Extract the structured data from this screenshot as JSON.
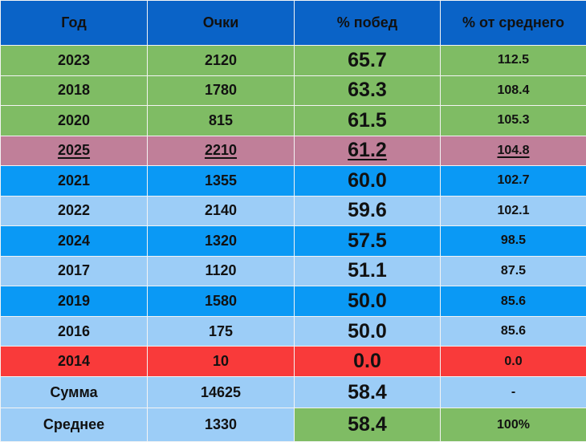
{
  "table": {
    "headers": {
      "year": "Год",
      "points": "Очки",
      "win_pct": "% побед",
      "pct_of_avg": "% от среднего"
    },
    "rows": [
      {
        "year": "2023",
        "points": "2120",
        "win_pct": "65.7",
        "pct_of_avg": "112.5",
        "color": "#7fbc64"
      },
      {
        "year": "2018",
        "points": "1780",
        "win_pct": "63.3",
        "pct_of_avg": "108.4",
        "color": "#7fbc64"
      },
      {
        "year": "2020",
        "points": "815",
        "win_pct": "61.5",
        "pct_of_avg": "105.3",
        "color": "#7fbc64"
      },
      {
        "year": "2025",
        "points": "2210",
        "win_pct": "61.2",
        "pct_of_avg": "104.8",
        "color": "#c07f99"
      },
      {
        "year": "2021",
        "points": "1355",
        "win_pct": "60.0",
        "pct_of_avg": "102.7",
        "color": "#0a99f5"
      },
      {
        "year": "2022",
        "points": "2140",
        "win_pct": "59.6",
        "pct_of_avg": "102.1",
        "color": "#9ccdf7"
      },
      {
        "year": "2024",
        "points": "1320",
        "win_pct": "57.5",
        "pct_of_avg": "98.5",
        "color": "#0a99f5"
      },
      {
        "year": "2017",
        "points": "1120",
        "win_pct": "51.1",
        "pct_of_avg": "87.5",
        "color": "#9ccdf7"
      },
      {
        "year": "2019",
        "points": "1580",
        "win_pct": "50.0",
        "pct_of_avg": "85.6",
        "color": "#0a99f5"
      },
      {
        "year": "2016",
        "points": "175",
        "win_pct": "50.0",
        "pct_of_avg": "85.6",
        "color": "#9ccdf7"
      },
      {
        "year": "2014",
        "points": "10",
        "win_pct": "0.0",
        "pct_of_avg": "0.0",
        "color": "#f93a3a"
      }
    ],
    "sum_row": {
      "label": "Сумма",
      "points": "14625",
      "win_pct": "58.4",
      "pct_of_avg": "-"
    },
    "avg_row": {
      "label": "Среднее",
      "points": "1330",
      "win_pct": "58.4",
      "pct_of_avg": "100%"
    }
  },
  "colors": {
    "header": "#0a63c7",
    "green": "#7fbc64",
    "highlight": "#c07f99",
    "blue": "#0a99f5",
    "light_blue": "#9ccdf7",
    "red": "#f93a3a"
  }
}
